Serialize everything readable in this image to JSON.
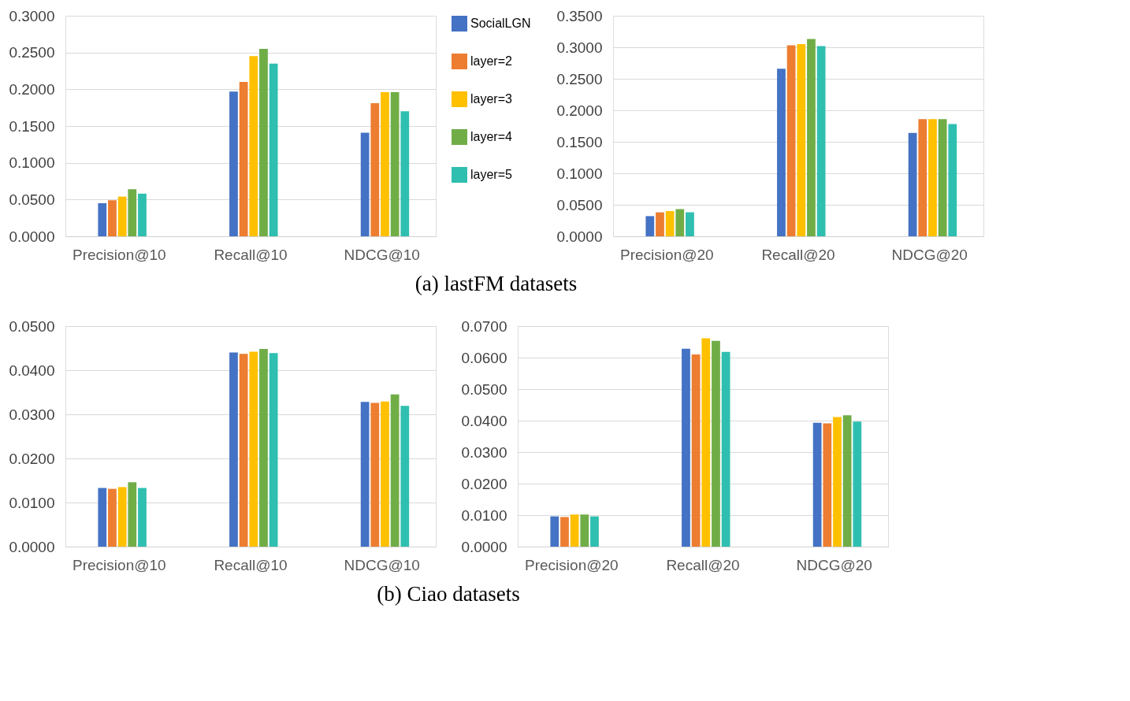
{
  "chart_data": [
    {
      "type": "bar",
      "categories": [
        "Precision@10",
        "Recall@10",
        "NDCG@10"
      ],
      "ylim": [
        0,
        0.3
      ],
      "yticks": [
        {
          "value": 0,
          "label": "0.0000"
        },
        {
          "value": 0.05,
          "label": "0.0500"
        },
        {
          "value": 0.1,
          "label": "0.1000"
        },
        {
          "value": 0.15,
          "label": "0.1500"
        },
        {
          "value": 0.2,
          "label": "0.2000"
        },
        {
          "value": 0.25,
          "label": "0.2500"
        },
        {
          "value": 0.3,
          "label": "0.3000"
        }
      ],
      "grid": "y",
      "legend": "right",
      "annotations": [
        "(a) lastFM datasets"
      ],
      "series": [
        {
          "name": "SocialLGN",
          "color": "#4472c4",
          "values": [
            0.045,
            0.197,
            0.141
          ]
        },
        {
          "name": "layer=2",
          "color": "#ed7d31",
          "values": [
            0.049,
            0.21,
            0.181
          ]
        },
        {
          "name": "layer=3",
          "color": "#ffc000",
          "values": [
            0.054,
            0.245,
            0.196
          ]
        },
        {
          "name": "layer=4",
          "color": "#70ad47",
          "values": [
            0.064,
            0.255,
            0.196
          ]
        },
        {
          "name": "layer=5",
          "color": "#2fbfb0",
          "values": [
            0.058,
            0.235,
            0.17
          ]
        }
      ]
    },
    {
      "type": "bar",
      "categories": [
        "Precision@20",
        "Recall@20",
        "NDCG@20"
      ],
      "ylim": [
        0,
        0.35
      ],
      "yticks": [
        {
          "value": 0,
          "label": "0.0000"
        },
        {
          "value": 0.05,
          "label": "0.0500"
        },
        {
          "value": 0.1,
          "label": "0.1000"
        },
        {
          "value": 0.15,
          "label": "0.1500"
        },
        {
          "value": 0.2,
          "label": "0.2000"
        },
        {
          "value": 0.25,
          "label": "0.2500"
        },
        {
          "value": 0.3,
          "label": "0.3000"
        },
        {
          "value": 0.35,
          "label": "0.3500"
        }
      ],
      "grid": "y",
      "series": [
        {
          "color": "#4472c4",
          "values": [
            0.032,
            0.266,
            0.164
          ]
        },
        {
          "color": "#ed7d31",
          "values": [
            0.038,
            0.303,
            0.186
          ]
        },
        {
          "color": "#ffc000",
          "values": [
            0.04,
            0.305,
            0.186
          ]
        },
        {
          "color": "#70ad47",
          "values": [
            0.043,
            0.313,
            0.186
          ]
        },
        {
          "color": "#2fbfb0",
          "values": [
            0.038,
            0.302,
            0.178
          ]
        }
      ]
    },
    {
      "type": "bar",
      "categories": [
        "Precision@10",
        "Recall@10",
        "NDCG@10"
      ],
      "ylim": [
        0,
        0.05
      ],
      "yticks": [
        {
          "value": 0,
          "label": "0.0000"
        },
        {
          "value": 0.01,
          "label": "0.0100"
        },
        {
          "value": 0.02,
          "label": "0.0200"
        },
        {
          "value": 0.03,
          "label": "0.0300"
        },
        {
          "value": 0.04,
          "label": "0.0400"
        },
        {
          "value": 0.05,
          "label": "0.0500"
        }
      ],
      "grid": "y",
      "annotations": [
        "(b) Ciao datasets"
      ],
      "series": [
        {
          "color": "#4472c4",
          "values": [
            0.0133,
            0.044,
            0.0328
          ]
        },
        {
          "color": "#ed7d31",
          "values": [
            0.0131,
            0.0437,
            0.0326
          ]
        },
        {
          "color": "#ffc000",
          "values": [
            0.0135,
            0.0442,
            0.0329
          ]
        },
        {
          "color": "#70ad47",
          "values": [
            0.0146,
            0.0448,
            0.0345
          ]
        },
        {
          "color": "#2fbfb0",
          "values": [
            0.0133,
            0.0439,
            0.0319
          ]
        }
      ]
    },
    {
      "type": "bar",
      "categories": [
        "Precision@20",
        "Recall@20",
        "NDCG@20"
      ],
      "ylim": [
        0,
        0.07
      ],
      "yticks": [
        {
          "value": 0,
          "label": "0.0000"
        },
        {
          "value": 0.01,
          "label": "0.0100"
        },
        {
          "value": 0.02,
          "label": "0.0200"
        },
        {
          "value": 0.03,
          "label": "0.0300"
        },
        {
          "value": 0.04,
          "label": "0.0400"
        },
        {
          "value": 0.05,
          "label": "0.0500"
        },
        {
          "value": 0.06,
          "label": "0.0600"
        },
        {
          "value": 0.07,
          "label": "0.0700"
        }
      ],
      "grid": "y",
      "series": [
        {
          "color": "#4472c4",
          "values": [
            0.0096,
            0.0628,
            0.0393
          ]
        },
        {
          "color": "#ed7d31",
          "values": [
            0.0094,
            0.061,
            0.0391
          ]
        },
        {
          "color": "#ffc000",
          "values": [
            0.0102,
            0.0661,
            0.0411
          ]
        },
        {
          "color": "#70ad47",
          "values": [
            0.0102,
            0.0653,
            0.0417
          ]
        },
        {
          "color": "#2fbfb0",
          "values": [
            0.0096,
            0.0618,
            0.0397
          ]
        }
      ]
    }
  ]
}
